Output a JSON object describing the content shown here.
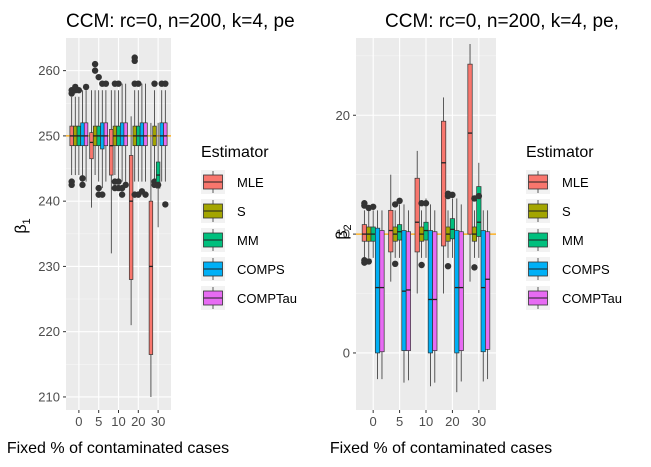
{
  "colors": {
    "MLE": "#F8766D",
    "S": "#A3A500",
    "MM": "#00BF7D",
    "COMPS": "#00B0F6",
    "COMPTau": "#E76BF3",
    "panel_bg": "#EBEBEB",
    "grid_major": "#FFFFFF",
    "reference_line": "#FFA500",
    "outlier": "#333333"
  },
  "legend": {
    "title": "Estimator",
    "entries": [
      "MLE",
      "S",
      "MM",
      "COMPS",
      "COMPTau"
    ]
  },
  "chart_data": [
    {
      "type": "boxplot",
      "title": "CCM: rc=0, n=200, k=4, pe",
      "xlabel": "Fixed % of contaminated cases",
      "ylabel": "β1",
      "ylabel_base": "β",
      "ylabel_sub": "1",
      "categories": [
        "0",
        "5",
        "10",
        "20",
        "30"
      ],
      "ylim": [
        208,
        265
      ],
      "yticks": [
        210,
        220,
        230,
        240,
        250,
        260
      ],
      "reference_value": 250,
      "grid": true,
      "legend_position": "right",
      "series": [
        {
          "name": "MLE",
          "boxes": [
            {
              "q1": 248.5,
              "median": 250,
              "q3": 251.5,
              "lo": 244,
              "hi": 256,
              "outliers": [
                243,
                242.5,
                256.5,
                257
              ]
            },
            {
              "q1": 246.5,
              "median": 249,
              "q3": 250.5,
              "lo": 239,
              "hi": 257,
              "outliers": []
            },
            {
              "q1": 244,
              "median": 248.5,
              "q3": 251,
              "lo": 232,
              "hi": 257,
              "outliers": []
            },
            {
              "q1": 228,
              "median": 240,
              "q3": 247,
              "lo": 221,
              "hi": 253,
              "outliers": []
            },
            {
              "q1": 216.5,
              "median": 230,
              "q3": 240,
              "lo": 210,
              "hi": 252,
              "outliers": []
            }
          ]
        },
        {
          "name": "S",
          "boxes": [
            {
              "q1": 248.5,
              "median": 250,
              "q3": 251.5,
              "lo": 244,
              "hi": 256,
              "outliers": [
                257,
                257.5
              ]
            },
            {
              "q1": 248.5,
              "median": 250,
              "q3": 251.5,
              "lo": 244,
              "hi": 257,
              "outliers": [
                260,
                261
              ]
            },
            {
              "q1": 248.5,
              "median": 250,
              "q3": 251.5,
              "lo": 244,
              "hi": 257,
              "outliers": [
                258,
                243,
                242
              ]
            },
            {
              "q1": 248.5,
              "median": 250,
              "q3": 251.5,
              "lo": 243,
              "hi": 257,
              "outliers": [
                258,
                262,
                261.5,
                241
              ]
            },
            {
              "q1": 248.5,
              "median": 250,
              "q3": 251.5,
              "lo": 243,
              "hi": 257,
              "outliers": [
                258,
                243,
                242.5
              ]
            }
          ]
        },
        {
          "name": "MM",
          "boxes": [
            {
              "q1": 248.5,
              "median": 250,
              "q3": 251.5,
              "lo": 244,
              "hi": 256,
              "outliers": [
                257
              ]
            },
            {
              "q1": 248.5,
              "median": 250,
              "q3": 251.5,
              "lo": 243,
              "hi": 257,
              "outliers": [
                259,
                242,
                241
              ]
            },
            {
              "q1": 248.5,
              "median": 250,
              "q3": 251.5,
              "lo": 243,
              "hi": 257,
              "outliers": [
                258,
                243,
                242
              ]
            },
            {
              "q1": 248.5,
              "median": 250,
              "q3": 251.5,
              "lo": 243,
              "hi": 257,
              "outliers": [
                258,
                241
              ]
            },
            {
              "q1": 242,
              "median": 244,
              "q3": 246,
              "lo": 236,
              "hi": 252,
              "outliers": [
                242.5
              ]
            }
          ]
        },
        {
          "name": "COMPS",
          "boxes": [
            {
              "q1": 248.5,
              "median": 250,
              "q3": 252,
              "lo": 243,
              "hi": 257,
              "outliers": [
                242.5,
                243.5
              ]
            },
            {
              "q1": 248,
              "median": 250,
              "q3": 252,
              "lo": 242,
              "hi": 257,
              "outliers": [
                241,
                258
              ]
            },
            {
              "q1": 248.5,
              "median": 250,
              "q3": 252,
              "lo": 243,
              "hi": 258,
              "outliers": [
                242,
                241
              ]
            },
            {
              "q1": 248.5,
              "median": 250,
              "q3": 252,
              "lo": 243,
              "hi": 258,
              "outliers": [
                241.5
              ]
            },
            {
              "q1": 248.5,
              "median": 250,
              "q3": 252,
              "lo": 243,
              "hi": 257,
              "outliers": [
                258
              ]
            }
          ]
        },
        {
          "name": "COMPTau",
          "boxes": [
            {
              "q1": 248.5,
              "median": 250,
              "q3": 252,
              "lo": 243,
              "hi": 257,
              "outliers": [
                257.5
              ]
            },
            {
              "q1": 248.5,
              "median": 250,
              "q3": 252,
              "lo": 243,
              "hi": 257,
              "outliers": [
                258
              ]
            },
            {
              "q1": 248.5,
              "median": 250,
              "q3": 252,
              "lo": 243,
              "hi": 258,
              "outliers": [
                242.5
              ]
            },
            {
              "q1": 248.5,
              "median": 250,
              "q3": 252,
              "lo": 243,
              "hi": 258,
              "outliers": [
                241
              ]
            },
            {
              "q1": 248.5,
              "median": 250,
              "q3": 252,
              "lo": 243,
              "hi": 257,
              "outliers": [
                239.5,
                258
              ]
            }
          ]
        }
      ]
    },
    {
      "type": "boxplot",
      "title": "CCM: rc=0, n=200, k=4, pe,",
      "xlabel": "Fixed % of contaminated cases",
      "ylabel": "β2",
      "ylabel_base": "β",
      "ylabel_sub": "2",
      "categories": [
        "0",
        "5",
        "10",
        "20",
        "30"
      ],
      "ylim": [
        -4.8,
        26.5
      ],
      "yticks": [
        0,
        10,
        20
      ],
      "reference_value": 10,
      "grid": true,
      "legend_position": "right",
      "series": [
        {
          "name": "MLE",
          "boxes": [
            {
              "q1": 9.4,
              "median": 10,
              "q3": 10.8,
              "lo": 8,
              "hi": 12,
              "outliers": [
                12.4,
                12.6,
                7.8,
                7.6
              ]
            },
            {
              "q1": 8.5,
              "median": 10.3,
              "q3": 12,
              "lo": 6,
              "hi": 15,
              "outliers": []
            },
            {
              "q1": 8.5,
              "median": 11,
              "q3": 14.7,
              "lo": 5,
              "hi": 17,
              "outliers": []
            },
            {
              "q1": 9,
              "median": 16,
              "q3": 19.5,
              "lo": 5,
              "hi": 21.5,
              "outliers": []
            },
            {
              "q1": 10,
              "median": 18.5,
              "q3": 24.3,
              "lo": 6,
              "hi": 26,
              "outliers": []
            }
          ]
        },
        {
          "name": "S",
          "boxes": [
            {
              "q1": 9.4,
              "median": 10,
              "q3": 10.6,
              "lo": 8,
              "hi": 12,
              "outliers": [
                12.2,
                7.7
              ]
            },
            {
              "q1": 9.4,
              "median": 10,
              "q3": 10.6,
              "lo": 8,
              "hi": 12,
              "outliers": [
                12.5,
                7.5
              ]
            },
            {
              "q1": 9.4,
              "median": 10,
              "q3": 10.6,
              "lo": 8,
              "hi": 12,
              "outliers": [
                12.6,
                7.4
              ]
            },
            {
              "q1": 9.4,
              "median": 10,
              "q3": 10.6,
              "lo": 8,
              "hi": 12,
              "outliers": [
                13.2,
                13.4,
                7.3
              ]
            },
            {
              "q1": 9.4,
              "median": 10,
              "q3": 10.6,
              "lo": 8,
              "hi": 12,
              "outliers": [
                13,
                7.2
              ]
            }
          ]
        },
        {
          "name": "MM",
          "boxes": [
            {
              "q1": 9.4,
              "median": 10,
              "q3": 10.6,
              "lo": 8,
              "hi": 12,
              "outliers": [
                12.3
              ]
            },
            {
              "q1": 9.5,
              "median": 10.2,
              "q3": 10.8,
              "lo": 8,
              "hi": 12.5,
              "outliers": [
                12.8
              ]
            },
            {
              "q1": 9.5,
              "median": 10.3,
              "q3": 11,
              "lo": 8,
              "hi": 13,
              "outliers": [
                12.6
              ]
            },
            {
              "q1": 9.6,
              "median": 10.4,
              "q3": 11.3,
              "lo": 8,
              "hi": 13,
              "outliers": [
                13.3
              ]
            },
            {
              "q1": 9.8,
              "median": 11,
              "q3": 14,
              "lo": 8,
              "hi": 16,
              "outliers": [
                13.2
              ]
            }
          ]
        },
        {
          "name": "COMPS",
          "boxes": [
            {
              "q1": 0,
              "median": 5.5,
              "q3": 10.5,
              "lo": -2.2,
              "hi": 12,
              "outliers": []
            },
            {
              "q1": 0.2,
              "median": 5.2,
              "q3": 10.3,
              "lo": -2.5,
              "hi": 12.5,
              "outliers": []
            },
            {
              "q1": 0,
              "median": 4.5,
              "q3": 10.3,
              "lo": -2.8,
              "hi": 12.5,
              "outliers": []
            },
            {
              "q1": 0,
              "median": 5.5,
              "q3": 10.3,
              "lo": -3.3,
              "hi": 13,
              "outliers": []
            },
            {
              "q1": 0.1,
              "median": 5.5,
              "q3": 10.3,
              "lo": -2.4,
              "hi": 12,
              "outliers": []
            }
          ]
        },
        {
          "name": "COMPTau",
          "boxes": [
            {
              "q1": 0.1,
              "median": 5.5,
              "q3": 10.3,
              "lo": -2.2,
              "hi": 12,
              "outliers": []
            },
            {
              "q1": 0.2,
              "median": 5.3,
              "q3": 10.2,
              "lo": -2.3,
              "hi": 12,
              "outliers": []
            },
            {
              "q1": 0.2,
              "median": 4.5,
              "q3": 10.2,
              "lo": -2.5,
              "hi": 12,
              "outliers": []
            },
            {
              "q1": 0.2,
              "median": 5.5,
              "q3": 10.2,
              "lo": -2.4,
              "hi": 12.5,
              "outliers": []
            },
            {
              "q1": 0.3,
              "median": 6.2,
              "q3": 10.2,
              "lo": -2.2,
              "hi": 12,
              "outliers": []
            }
          ]
        }
      ]
    }
  ]
}
